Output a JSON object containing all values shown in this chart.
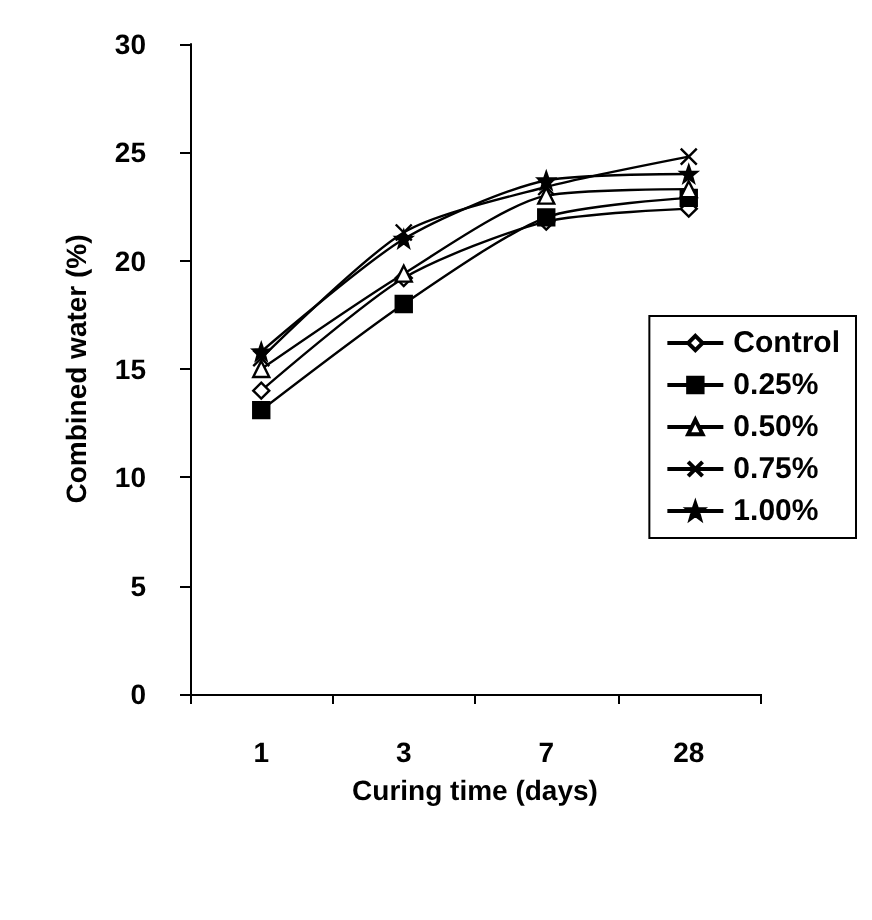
{
  "chart_data": {
    "type": "line",
    "xlabel": "Curing time (days)",
    "ylabel": "Combined water (%)",
    "categories": [
      "1",
      "3",
      "7",
      "28"
    ],
    "series": [
      {
        "name": "Control",
        "color": "#000000",
        "marker": "diamond",
        "values": [
          14.0,
          19.2,
          21.8,
          22.4
        ]
      },
      {
        "name": "0.25%",
        "color": "#000000",
        "marker": "square",
        "values": [
          13.1,
          18.0,
          22.0,
          22.9
        ]
      },
      {
        "name": "0.50%",
        "color": "#000000",
        "marker": "triangle",
        "values": [
          15.0,
          19.4,
          23.0,
          23.3
        ]
      },
      {
        "name": "0.75%",
        "color": "#000000",
        "marker": "cross",
        "values": [
          15.5,
          21.3,
          23.4,
          24.8
        ]
      },
      {
        "name": "1.00%",
        "color": "#000000",
        "marker": "star",
        "values": [
          15.8,
          21.0,
          23.7,
          24.0
        ]
      }
    ],
    "ylim": [
      0,
      30
    ],
    "yticks": [
      0,
      5,
      10,
      15,
      20,
      25,
      30
    ],
    "grid": false,
    "legend": "right",
    "line_style": "solid"
  }
}
